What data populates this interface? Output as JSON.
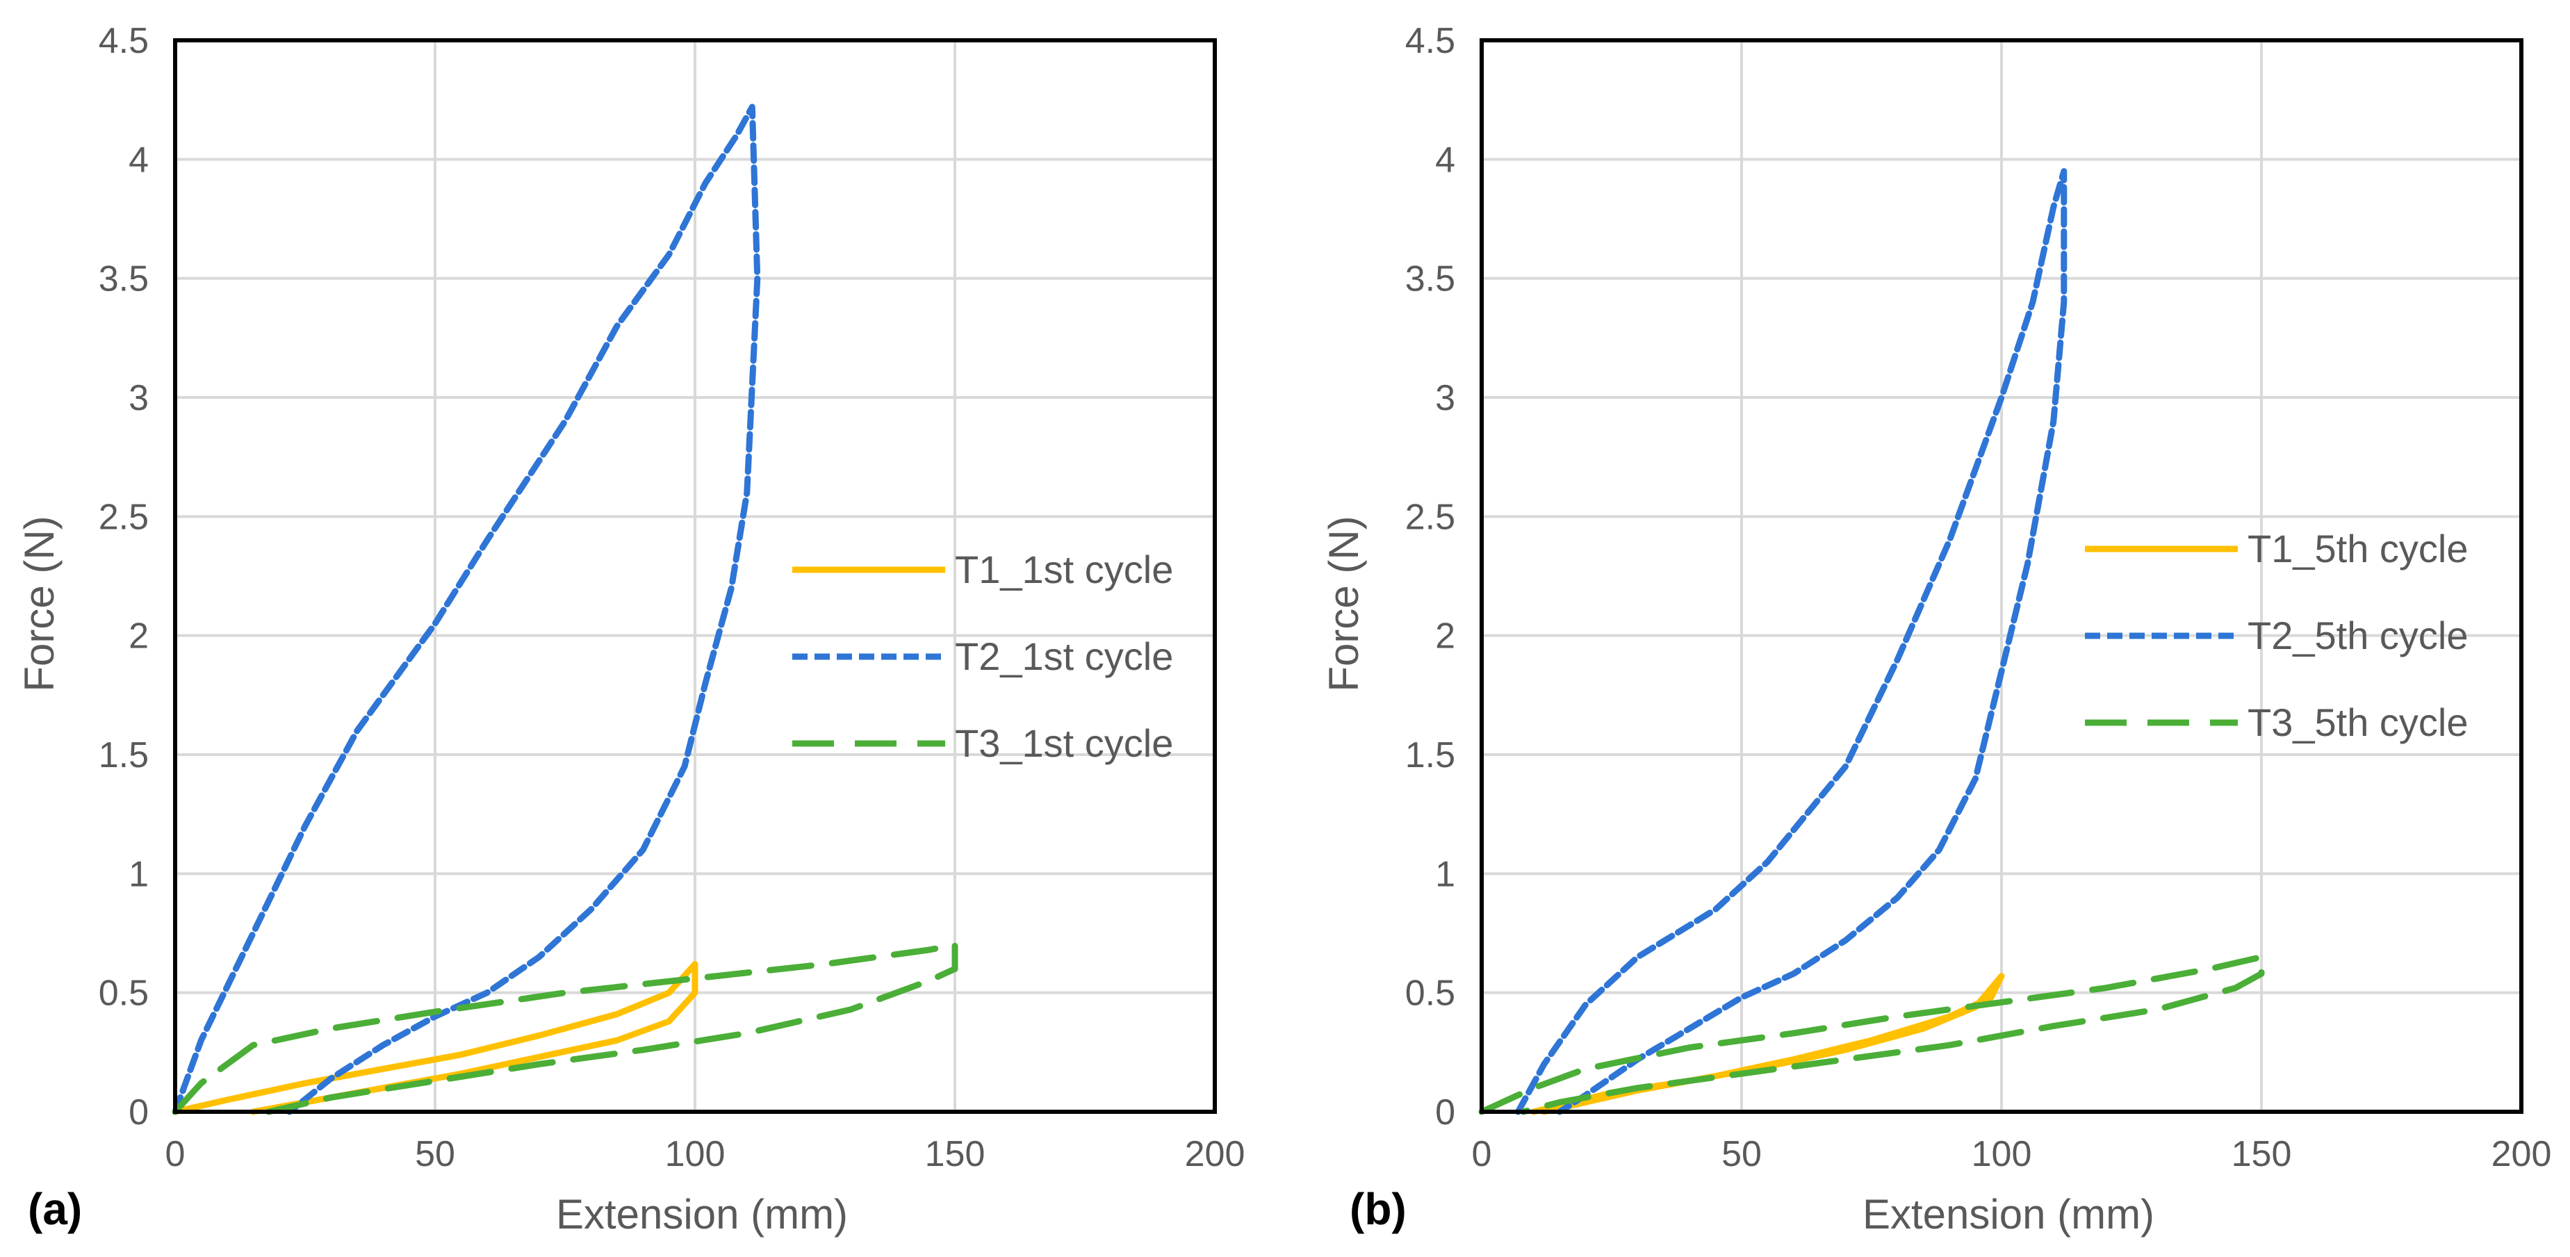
{
  "chart_data": [
    {
      "type": "line",
      "panel_label": "(a)",
      "title": "",
      "xlabel": "Extension (mm)",
      "ylabel": "Force (N)",
      "xlim": [
        0,
        200
      ],
      "ylim": [
        0,
        4.5
      ],
      "x_ticks": [
        "0",
        "50",
        "100",
        "150",
        "200"
      ],
      "y_ticks": [
        "0",
        "0.5",
        "1",
        "1.5",
        "2",
        "2.5",
        "3",
        "3.5",
        "4",
        "4.5"
      ],
      "grid": true,
      "legend_position": "right-middle",
      "series": [
        {
          "name": "T1_1st cycle",
          "color": "#ffc000",
          "style": "solid",
          "points": [
            [
              0,
              0
            ],
            [
              10,
              0.05
            ],
            [
              25,
              0.12
            ],
            [
              40,
              0.18
            ],
            [
              55,
              0.24
            ],
            [
              70,
              0.32
            ],
            [
              85,
              0.41
            ],
            [
              95,
              0.5
            ],
            [
              100,
              0.62
            ],
            [
              100,
              0.5
            ],
            [
              95,
              0.38
            ],
            [
              85,
              0.3
            ],
            [
              70,
              0.23
            ],
            [
              55,
              0.16
            ],
            [
              40,
              0.1
            ],
            [
              25,
              0.04
            ],
            [
              15,
              0
            ]
          ]
        },
        {
          "name": "T2_1st cycle",
          "color": "#2e75d6",
          "style": "dotted",
          "points": [
            [
              0,
              0
            ],
            [
              5,
              0.3
            ],
            [
              15,
              0.75
            ],
            [
              25,
              1.2
            ],
            [
              35,
              1.6
            ],
            [
              50,
              2.05
            ],
            [
              60,
              2.4
            ],
            [
              75,
              2.9
            ],
            [
              85,
              3.3
            ],
            [
              90,
              3.45
            ],
            [
              95,
              3.6
            ],
            [
              102,
              3.9
            ],
            [
              108,
              4.1
            ],
            [
              111,
              4.22
            ],
            [
              112,
              3.5
            ],
            [
              110,
              2.6
            ],
            [
              107,
              2.2
            ],
            [
              102,
              1.8
            ],
            [
              98,
              1.45
            ],
            [
              90,
              1.1
            ],
            [
              80,
              0.85
            ],
            [
              70,
              0.65
            ],
            [
              60,
              0.5
            ],
            [
              50,
              0.4
            ],
            [
              40,
              0.28
            ],
            [
              30,
              0.14
            ],
            [
              22,
              0
            ]
          ]
        },
        {
          "name": "T3_1st cycle",
          "color": "#4aae37",
          "style": "dashed",
          "points": [
            [
              0,
              0
            ],
            [
              5,
              0.12
            ],
            [
              15,
              0.28
            ],
            [
              30,
              0.35
            ],
            [
              50,
              0.42
            ],
            [
              75,
              0.5
            ],
            [
              100,
              0.56
            ],
            [
              125,
              0.62
            ],
            [
              145,
              0.68
            ],
            [
              150,
              0.7
            ],
            [
              150,
              0.6
            ],
            [
              145,
              0.55
            ],
            [
              130,
              0.43
            ],
            [
              110,
              0.33
            ],
            [
              90,
              0.26
            ],
            [
              70,
              0.2
            ],
            [
              50,
              0.13
            ],
            [
              30,
              0.06
            ],
            [
              18,
              0
            ]
          ]
        }
      ]
    },
    {
      "type": "line",
      "panel_label": "(b)",
      "title": "",
      "xlabel": "Extension (mm)",
      "ylabel": "Force (N)",
      "xlim": [
        0,
        200
      ],
      "ylim": [
        0,
        4.5
      ],
      "x_ticks": [
        "0",
        "50",
        "100",
        "150",
        "200"
      ],
      "y_ticks": [
        "0",
        "0.5",
        "1",
        "1.5",
        "2",
        "2.5",
        "3",
        "3.5",
        "4",
        "4.5"
      ],
      "grid": true,
      "legend_position": "right-middle",
      "series": [
        {
          "name": "T1_5th cycle",
          "color": "#ffc000",
          "style": "solid",
          "points": [
            [
              10,
              0
            ],
            [
              25,
              0.08
            ],
            [
              40,
              0.13
            ],
            [
              55,
              0.19
            ],
            [
              70,
              0.26
            ],
            [
              85,
              0.35
            ],
            [
              95,
              0.44
            ],
            [
              100,
              0.57
            ],
            [
              98,
              0.48
            ],
            [
              90,
              0.4
            ],
            [
              75,
              0.3
            ],
            [
              60,
              0.22
            ],
            [
              45,
              0.15
            ],
            [
              30,
              0.09
            ],
            [
              18,
              0.03
            ],
            [
              12,
              0
            ]
          ]
        },
        {
          "name": "T2_5th cycle",
          "color": "#2e75d6",
          "style": "dotted",
          "points": [
            [
              7,
              0
            ],
            [
              12,
              0.2
            ],
            [
              20,
              0.45
            ],
            [
              30,
              0.65
            ],
            [
              45,
              0.85
            ],
            [
              55,
              1.05
            ],
            [
              70,
              1.45
            ],
            [
              80,
              1.9
            ],
            [
              90,
              2.4
            ],
            [
              100,
              3.0
            ],
            [
              106,
              3.4
            ],
            [
              110,
              3.8
            ],
            [
              112,
              3.95
            ],
            [
              112,
              3.4
            ],
            [
              110,
              2.9
            ],
            [
              105,
              2.3
            ],
            [
              100,
              1.85
            ],
            [
              95,
              1.4
            ],
            [
              88,
              1.1
            ],
            [
              80,
              0.9
            ],
            [
              70,
              0.72
            ],
            [
              60,
              0.58
            ],
            [
              50,
              0.48
            ],
            [
              40,
              0.35
            ],
            [
              30,
              0.22
            ],
            [
              20,
              0.07
            ],
            [
              15,
              0
            ]
          ]
        },
        {
          "name": "T3_5th cycle",
          "color": "#4aae37",
          "style": "dashed",
          "points": [
            [
              0,
              0
            ],
            [
              10,
              0.1
            ],
            [
              20,
              0.18
            ],
            [
              40,
              0.27
            ],
            [
              60,
              0.33
            ],
            [
              80,
              0.4
            ],
            [
              100,
              0.46
            ],
            [
              120,
              0.52
            ],
            [
              140,
              0.6
            ],
            [
              150,
              0.65
            ],
            [
              150,
              0.58
            ],
            [
              145,
              0.52
            ],
            [
              130,
              0.43
            ],
            [
              110,
              0.36
            ],
            [
              90,
              0.28
            ],
            [
              70,
              0.22
            ],
            [
              50,
              0.16
            ],
            [
              30,
              0.1
            ],
            [
              15,
              0.04
            ],
            [
              8,
              0
            ]
          ]
        }
      ]
    }
  ]
}
